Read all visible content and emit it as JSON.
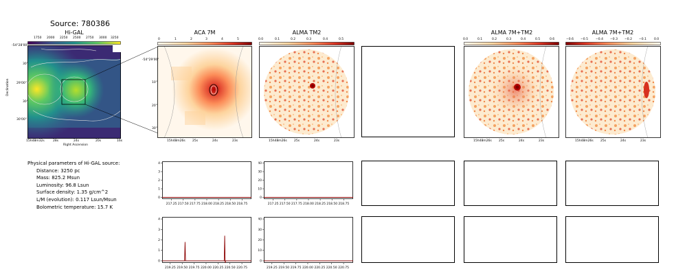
{
  "page": {
    "source_title": "Source: 780386"
  },
  "panels": {
    "higal": {
      "title": "Hi-GAL",
      "colorbar_ticks": [
        "1750",
        "2000",
        "2250",
        "2500",
        "2750",
        "3000",
        "3250"
      ],
      "y_ticks": [
        "-54°28'00\"",
        "30\"",
        "29'00\"",
        "30\"",
        "30'00\""
      ],
      "x_ticks": [
        "15h48m32s",
        "28s",
        "24s",
        "20s",
        "16s"
      ],
      "xlabel": "Right Ascension",
      "ylabel": "Declination"
    },
    "aca7m": {
      "title": "ACA 7M",
      "colorbar_ticks": [
        "0",
        "1",
        "2",
        "3",
        "4",
        "5"
      ],
      "y_ticks": [
        "-54°29'00\"",
        "10\"",
        "20\"",
        "30\""
      ],
      "x_ticks": [
        "15h48m26s",
        "25s",
        "24s",
        "23s"
      ]
    },
    "almatm2": {
      "title": "ALMA TM2",
      "colorbar_ticks": [
        "0.0",
        "0.1",
        "0.2",
        "0.3",
        "0.4",
        "0.5"
      ],
      "x_ticks": [
        "15h48m26s",
        "25s",
        "24s",
        "23s"
      ]
    },
    "alma7mtm2": {
      "title": "ALMA 7M+TM2",
      "colorbar_ticks": [
        "0.0",
        "0.1",
        "0.2",
        "0.3",
        "0.4",
        "0.5",
        "0.6"
      ],
      "x_ticks": [
        "15h48m26s",
        "25s",
        "24s",
        "23s"
      ]
    },
    "alma7mtm2_neg": {
      "title": "ALMA 7M+TM2",
      "colorbar_ticks": [
        "−0.6",
        "−0.5",
        "−0.4",
        "−0.3",
        "−0.2",
        "−0.1",
        "0.0"
      ],
      "x_ticks": [
        "15h48m26s",
        "25s",
        "24s",
        "23s"
      ]
    }
  },
  "params": {
    "heading": "Physical parameters of Hi-GAL source:",
    "lines": [
      "Distance: 3250 pc",
      "Mass: 825.2 Msun",
      "Luminosity: 96.8 Lsun",
      "Surface density: 1.35 g/cm^2",
      "L/M (evolution): 0.117 Lsun/Msun",
      "Bolometric temperature: 15.7 K"
    ]
  },
  "chart_data": [
    {
      "type": "line",
      "name": "spectrum-aca7m-spw1",
      "x_ticks": [
        "217.25",
        "217.50",
        "217.75",
        "218.00",
        "218.25",
        "218.50",
        "218.75"
      ],
      "y_ticks": [
        "0",
        "1",
        "2",
        "3",
        "4"
      ],
      "xlim": [
        217.05,
        218.95
      ],
      "ylim": [
        -0.2,
        4.2
      ],
      "x": [
        217.05,
        218.95
      ],
      "y": [
        0.0,
        0.0
      ],
      "color": "#8b0000"
    },
    {
      "type": "line",
      "name": "spectrum-almatm2-spw1",
      "x_ticks": [
        "217.25",
        "217.50",
        "217.75",
        "218.00",
        "218.25",
        "218.50",
        "218.75"
      ],
      "y_ticks": [
        "0",
        "10",
        "20",
        "30",
        "40"
      ],
      "xlim": [
        217.05,
        218.95
      ],
      "ylim": [
        -2,
        42
      ],
      "x": [
        217.05,
        218.95
      ],
      "y": [
        0.0,
        0.0
      ],
      "color": "#8b0000"
    },
    {
      "type": "line",
      "name": "spectrum-aca7m-spw2",
      "x_ticks": [
        "219.25",
        "219.50",
        "219.75",
        "220.00",
        "220.25",
        "220.50",
        "220.75"
      ],
      "y_ticks": [
        "0",
        "1",
        "2",
        "3",
        "4"
      ],
      "xlim": [
        219.08,
        220.95
      ],
      "ylim": [
        -0.2,
        4.2
      ],
      "x": [
        219.08,
        219.55,
        219.56,
        219.57,
        220.38,
        220.39,
        220.4,
        220.41,
        220.95
      ],
      "y": [
        0.0,
        0.0,
        1.8,
        0.0,
        0.0,
        2.4,
        -0.2,
        0.0,
        0.0
      ],
      "color": "#8b0000"
    },
    {
      "type": "line",
      "name": "spectrum-almatm2-spw2",
      "x_ticks": [
        "219.25",
        "219.50",
        "219.75",
        "220.00",
        "220.25",
        "220.50",
        "220.75"
      ],
      "y_ticks": [
        "0",
        "10",
        "20",
        "30",
        "40"
      ],
      "xlim": [
        219.08,
        220.95
      ],
      "ylim": [
        -2,
        42
      ],
      "x": [
        219.08,
        220.95
      ],
      "y": [
        0.0,
        0.0
      ],
      "color": "#8b0000"
    }
  ]
}
